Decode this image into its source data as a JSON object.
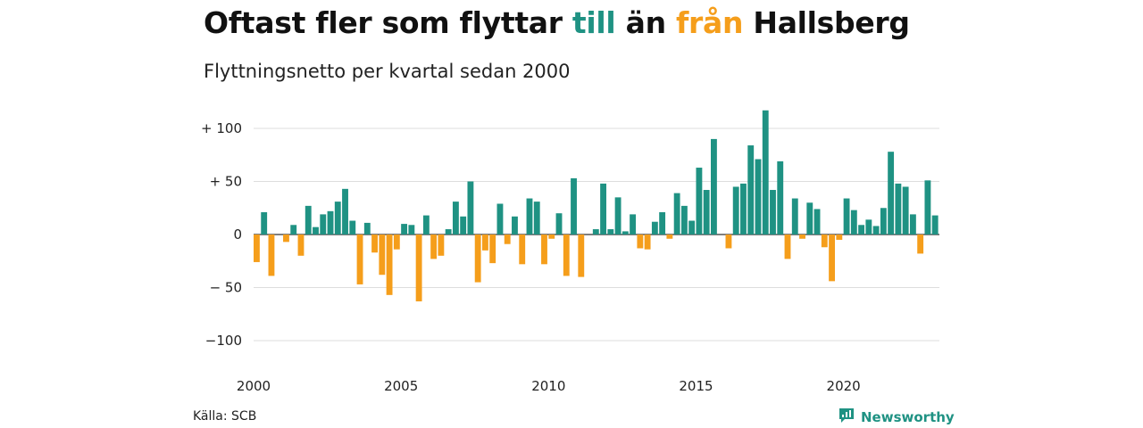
{
  "header": {
    "title_parts": [
      "Oftast fler som flyttar ",
      "till",
      " än ",
      "från",
      " Hallsberg"
    ],
    "subtitle": "Flyttningsnetto per kvartal sedan 2000"
  },
  "colors": {
    "positive": "#1f9283",
    "negative": "#f59e1b",
    "title_till": "#1f9283",
    "title_fran": "#f59e1b",
    "grid": "#dddddd",
    "baseline": "#333333"
  },
  "footer": {
    "source": "Källa: SCB",
    "brand": "Newsworthy",
    "brand_icon": "newsworthy-logo-icon"
  },
  "chart_data": {
    "type": "bar",
    "title": "Oftast fler som flyttar till än från Hallsberg",
    "subtitle": "Flyttningsnetto per kvartal sedan 2000",
    "x_start": "2000 Q1",
    "frequency": "quarterly",
    "ylim": [
      -110,
      120
    ],
    "y_ticks": [
      100,
      50,
      0,
      -50,
      -100
    ],
    "y_tick_labels": [
      "+ 100",
      "+  50",
      "0",
      "− 50",
      "−100"
    ],
    "x_ticks": [
      "2000",
      "2005",
      "2010",
      "2015",
      "2020"
    ],
    "grid": true,
    "values": [
      -26,
      21,
      -39,
      0,
      -7,
      9,
      -20,
      27,
      7,
      19,
      22,
      31,
      43,
      13,
      -47,
      11,
      -17,
      -38,
      -57,
      -14,
      10,
      9,
      -63,
      18,
      -23,
      -20,
      5,
      31,
      17,
      50,
      -45,
      -15,
      -27,
      29,
      -9,
      17,
      -28,
      34,
      31,
      -28,
      -4,
      20,
      -39,
      53,
      -40,
      0,
      5,
      48,
      5,
      35,
      3,
      19,
      -13,
      -14,
      12,
      21,
      -4,
      39,
      27,
      13,
      63,
      42,
      90,
      0,
      -13,
      45,
      48,
      84,
      71,
      117,
      42,
      69,
      -23,
      34,
      -4,
      30,
      24,
      -12,
      -44,
      -5,
      34,
      23,
      9,
      14,
      8,
      25,
      78,
      48,
      45,
      19,
      -18,
      51,
      18
    ]
  }
}
